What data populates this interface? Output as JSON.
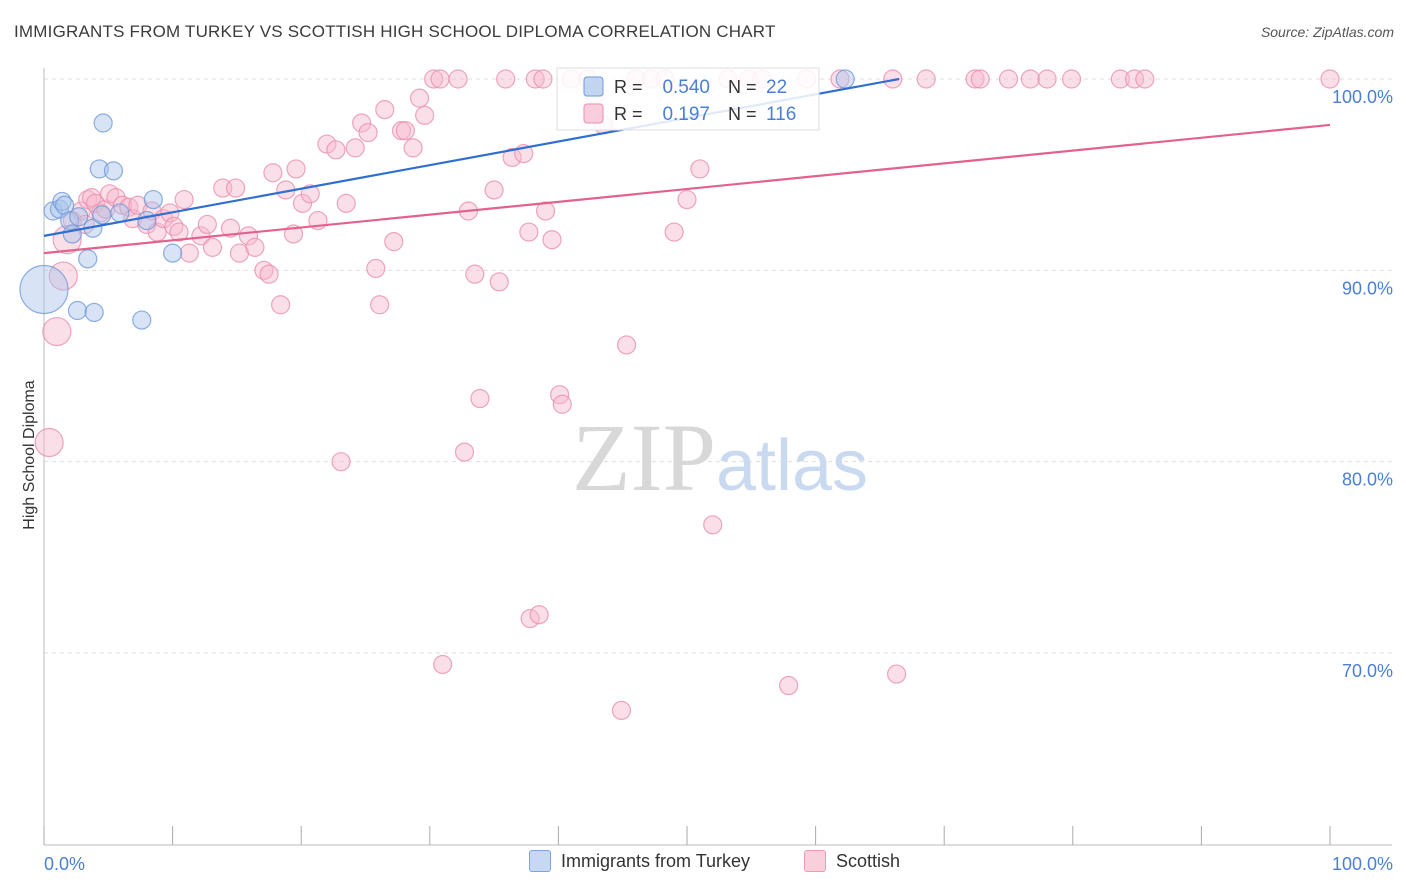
{
  "header": {
    "title": "IMMIGRANTS FROM TURKEY VS SCOTTISH HIGH SCHOOL DIPLOMA CORRELATION CHART",
    "source": "Source: ZipAtlas.com"
  },
  "watermark": {
    "zip": "ZIP",
    "atlas": "atlas"
  },
  "colors": {
    "blue_fill": "#a8c4ec",
    "blue_stroke": "#6f9ad8",
    "blue_line": "#2f6fd0",
    "pink_fill": "#f6b8cc",
    "pink_stroke": "#ea8fb0",
    "pink_line": "#e2628e",
    "value_text": "#4a7fd4",
    "grid": "#dddddd"
  },
  "legend_top": {
    "rows": [
      {
        "r_label": "R =",
        "r_value": "0.540",
        "n_label": "N =",
        "n_value": "22",
        "swatch": "blue"
      },
      {
        "r_label": "R =",
        "r_value": "0.197",
        "n_label": "N =",
        "n_value": "116",
        "swatch": "pink"
      }
    ]
  },
  "legend_bottom": {
    "items": [
      {
        "label": "Immigrants from Turkey",
        "swatch": "blue"
      },
      {
        "label": "Scottish",
        "swatch": "pink"
      }
    ]
  },
  "chart_data": {
    "type": "scatter",
    "title": "IMMIGRANTS FROM TURKEY VS SCOTTISH HIGH SCHOOL DIPLOMA CORRELATION CHART",
    "xlabel": "",
    "ylabel": "High School Diploma",
    "xlim": [
      0,
      100
    ],
    "ylim": [
      60.5,
      100.4
    ],
    "x_tick_labels": [
      "0.0%",
      "100.0%"
    ],
    "y_ticks": [
      {
        "value": 100,
        "label": "100.0%"
      },
      {
        "value": 90,
        "label": "90.0%"
      },
      {
        "value": 80,
        "label": "80.0%"
      },
      {
        "value": 70,
        "label": "70.0%"
      }
    ],
    "grid": true,
    "legend_placement": "top-center",
    "series": [
      {
        "name": "Immigrants from Turkey",
        "color": "blue",
        "r": 0.54,
        "n": 22,
        "trend": {
          "x0": 0,
          "y0": 91.8,
          "x1": 66.5,
          "y1": 100.0
        },
        "points": [
          [
            0.0,
            89.0,
            24
          ],
          [
            0.7,
            93.1,
            9
          ],
          [
            1.2,
            93.2,
            9
          ],
          [
            1.4,
            93.6,
            9
          ],
          [
            1.6,
            93.4,
            9
          ],
          [
            2.0,
            92.6,
            9
          ],
          [
            2.2,
            91.9,
            9
          ],
          [
            2.6,
            87.9,
            9
          ],
          [
            2.7,
            92.8,
            9
          ],
          [
            3.4,
            90.6,
            9
          ],
          [
            3.8,
            92.2,
            9
          ],
          [
            3.9,
            87.8,
            9
          ],
          [
            4.3,
            95.3,
            9
          ],
          [
            4.5,
            92.9,
            9
          ],
          [
            4.6,
            97.7,
            9
          ],
          [
            5.4,
            95.2,
            9
          ],
          [
            5.9,
            93.0,
            9
          ],
          [
            7.6,
            87.4,
            9
          ],
          [
            8.0,
            92.6,
            9
          ],
          [
            8.5,
            93.7,
            9
          ],
          [
            10.0,
            90.9,
            9
          ],
          [
            62.3,
            100.0,
            9
          ]
        ]
      },
      {
        "name": "Scottish",
        "color": "pink",
        "r": 0.197,
        "n": 116,
        "trend": {
          "x0": 0,
          "y0": 90.9,
          "x1": 100,
          "y1": 97.6
        },
        "points": [
          [
            0.4,
            81.0,
            14
          ],
          [
            1.0,
            86.8,
            14
          ],
          [
            1.5,
            89.7,
            14
          ],
          [
            1.8,
            91.6,
            14
          ],
          [
            2.2,
            92.6,
            9
          ],
          [
            2.9,
            93.1,
            9
          ],
          [
            3.2,
            92.4,
            9
          ],
          [
            3.4,
            93.7,
            9
          ],
          [
            3.7,
            93.8,
            9
          ],
          [
            4.0,
            93.5,
            9
          ],
          [
            4.4,
            93.0,
            9
          ],
          [
            4.8,
            93.2,
            9
          ],
          [
            5.1,
            94.0,
            9
          ],
          [
            5.6,
            93.8,
            9
          ],
          [
            6.1,
            93.4,
            9
          ],
          [
            6.6,
            93.3,
            9
          ],
          [
            6.9,
            92.7,
            9
          ],
          [
            7.3,
            93.4,
            9
          ],
          [
            8.0,
            92.4,
            9
          ],
          [
            8.4,
            93.1,
            9
          ],
          [
            8.8,
            92.0,
            9
          ],
          [
            9.3,
            92.7,
            9
          ],
          [
            9.8,
            93.0,
            9
          ],
          [
            10.1,
            92.3,
            9
          ],
          [
            10.5,
            92.0,
            9
          ],
          [
            10.9,
            93.7,
            9
          ],
          [
            11.3,
            90.9,
            9
          ],
          [
            12.2,
            91.8,
            9
          ],
          [
            12.7,
            92.4,
            9
          ],
          [
            13.1,
            91.2,
            9
          ],
          [
            13.9,
            94.3,
            9
          ],
          [
            14.5,
            92.2,
            9
          ],
          [
            14.9,
            94.3,
            9
          ],
          [
            15.2,
            90.9,
            9
          ],
          [
            15.9,
            91.8,
            9
          ],
          [
            16.4,
            91.2,
            9
          ],
          [
            17.1,
            90.0,
            9
          ],
          [
            17.5,
            89.8,
            9
          ],
          [
            17.8,
            95.1,
            9
          ],
          [
            18.4,
            88.2,
            9
          ],
          [
            18.8,
            94.2,
            9
          ],
          [
            19.4,
            91.9,
            9
          ],
          [
            19.6,
            95.3,
            9
          ],
          [
            20.1,
            93.5,
            9
          ],
          [
            20.7,
            94.0,
            9
          ],
          [
            21.3,
            92.6,
            9
          ],
          [
            22.0,
            96.6,
            9
          ],
          [
            22.7,
            96.3,
            9
          ],
          [
            23.1,
            80.0,
            9
          ],
          [
            23.5,
            93.5,
            9
          ],
          [
            24.2,
            96.4,
            9
          ],
          [
            24.7,
            97.7,
            9
          ],
          [
            25.2,
            97.2,
            9
          ],
          [
            25.8,
            90.1,
            9
          ],
          [
            26.1,
            88.2,
            9
          ],
          [
            26.5,
            98.4,
            9
          ],
          [
            27.2,
            91.5,
            9
          ],
          [
            27.8,
            97.3,
            9
          ],
          [
            28.1,
            97.3,
            9
          ],
          [
            28.7,
            96.4,
            9
          ],
          [
            29.2,
            99.0,
            9
          ],
          [
            29.6,
            98.1,
            9
          ],
          [
            30.3,
            100.0,
            9
          ],
          [
            30.8,
            100.0,
            9
          ],
          [
            31.0,
            69.4,
            9
          ],
          [
            32.2,
            100.0,
            9
          ],
          [
            32.7,
            80.5,
            9
          ],
          [
            33.0,
            93.1,
            9
          ],
          [
            33.5,
            89.8,
            9
          ],
          [
            33.9,
            83.3,
            9
          ],
          [
            35.0,
            94.2,
            9
          ],
          [
            35.4,
            89.4,
            9
          ],
          [
            35.9,
            100.0,
            9
          ],
          [
            36.4,
            95.9,
            9
          ],
          [
            37.3,
            96.1,
            9
          ],
          [
            37.7,
            92.0,
            9
          ],
          [
            38.2,
            100.0,
            9
          ],
          [
            38.8,
            100.0,
            9
          ],
          [
            37.8,
            71.8,
            9
          ],
          [
            38.5,
            72.0,
            9
          ],
          [
            39.0,
            93.1,
            9
          ],
          [
            39.5,
            91.6,
            9
          ],
          [
            40.1,
            83.5,
            9
          ],
          [
            40.3,
            83.0,
            9
          ],
          [
            41.0,
            100.0,
            9
          ],
          [
            42.3,
            100.0,
            9
          ],
          [
            42.8,
            99.2,
            9
          ],
          [
            43.5,
            97.6,
            9
          ],
          [
            44.9,
            67.0,
            9
          ],
          [
            45.3,
            86.1,
            9
          ],
          [
            46.0,
            100.0,
            9
          ],
          [
            47.2,
            100.0,
            9
          ],
          [
            48.3,
            100.0,
            9
          ],
          [
            49.0,
            92.0,
            9
          ],
          [
            50.0,
            93.7,
            9
          ],
          [
            51.0,
            95.3,
            9
          ],
          [
            52.0,
            76.7,
            9
          ],
          [
            53.2,
            100.0,
            9
          ],
          [
            54.8,
            100.0,
            9
          ],
          [
            55.8,
            100.0,
            9
          ],
          [
            57.9,
            68.3,
            9
          ],
          [
            59.3,
            100.0,
            9
          ],
          [
            61.9,
            100.0,
            9
          ],
          [
            66.0,
            100.0,
            9
          ],
          [
            66.3,
            68.9,
            9
          ],
          [
            68.6,
            100.0,
            9
          ],
          [
            72.4,
            100.0,
            9
          ],
          [
            72.8,
            100.0,
            9
          ],
          [
            75.0,
            100.0,
            9
          ],
          [
            76.7,
            100.0,
            9
          ],
          [
            78.0,
            100.0,
            9
          ],
          [
            79.9,
            100.0,
            9
          ],
          [
            83.7,
            100.0,
            9
          ],
          [
            84.8,
            100.0,
            9
          ],
          [
            85.6,
            100.0,
            9
          ],
          [
            100.0,
            100.0,
            9
          ]
        ]
      }
    ]
  }
}
